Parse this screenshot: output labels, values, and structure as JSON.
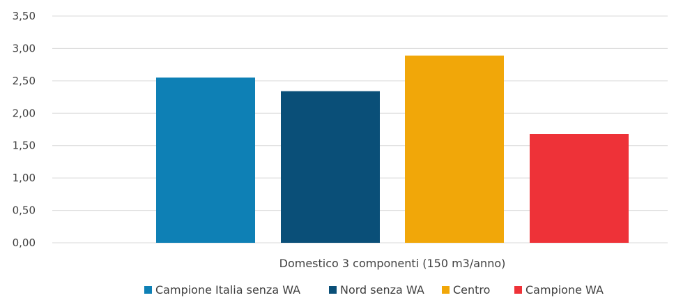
{
  "chart_data": {
    "type": "bar",
    "categories": [
      "Domestico 3 componenti (150 m3/anno)"
    ],
    "series": [
      {
        "name": "Campione Italia senza WA",
        "values": [
          2.55
        ],
        "color": "#0E80B5"
      },
      {
        "name": "Nord senza WA",
        "values": [
          2.34
        ],
        "color": "#0A4F78"
      },
      {
        "name": "Centro",
        "values": [
          2.89
        ],
        "color": "#F1A709"
      },
      {
        "name": "Campione WA",
        "values": [
          1.68
        ],
        "color": "#EE3238"
      }
    ],
    "title": "",
    "xlabel": "",
    "ylabel": "",
    "ylim": [
      0,
      3.5
    ],
    "yticks": [
      "0,00",
      "0,50",
      "1,00",
      "1,50",
      "2,00",
      "2,50",
      "3,00",
      "3,50"
    ],
    "grid": true,
    "legend_position": "bottom"
  },
  "colors": {
    "gridline": "#D9D9D9",
    "text": "#404040"
  }
}
